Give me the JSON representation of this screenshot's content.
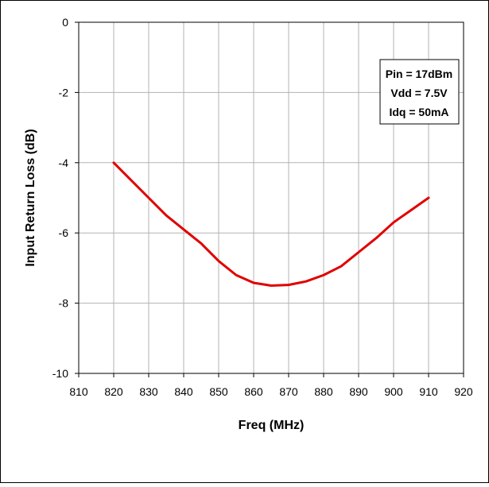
{
  "chart_data": {
    "type": "line",
    "xlabel": "Freq (MHz)",
    "ylabel": "Input Return Loss (dB)",
    "xlim": [
      810,
      920
    ],
    "ylim": [
      -10,
      0
    ],
    "x_ticks": [
      "810",
      "820",
      "830",
      "840",
      "850",
      "860",
      "870",
      "880",
      "890",
      "900",
      "910",
      "920"
    ],
    "y_ticks": [
      "0",
      "-2",
      "-4",
      "-6",
      "-8",
      "-10"
    ],
    "grid": true,
    "legend_placement": "top-right",
    "annotation": {
      "lines": [
        "Pin = 17dBm",
        "Vdd = 7.5V",
        "Idq = 50mA"
      ]
    },
    "series": [
      {
        "color": "#e00000",
        "x": [
          820,
          825,
          830,
          835,
          840,
          845,
          850,
          855,
          860,
          865,
          870,
          875,
          880,
          885,
          890,
          895,
          900,
          905,
          910
        ],
        "y": [
          -4.0,
          -4.5,
          -5.0,
          -5.5,
          -5.9,
          -6.3,
          -6.8,
          -7.2,
          -7.42,
          -7.5,
          -7.48,
          -7.38,
          -7.2,
          -6.95,
          -6.55,
          -6.15,
          -5.7,
          -5.35,
          -5.0
        ]
      }
    ]
  }
}
